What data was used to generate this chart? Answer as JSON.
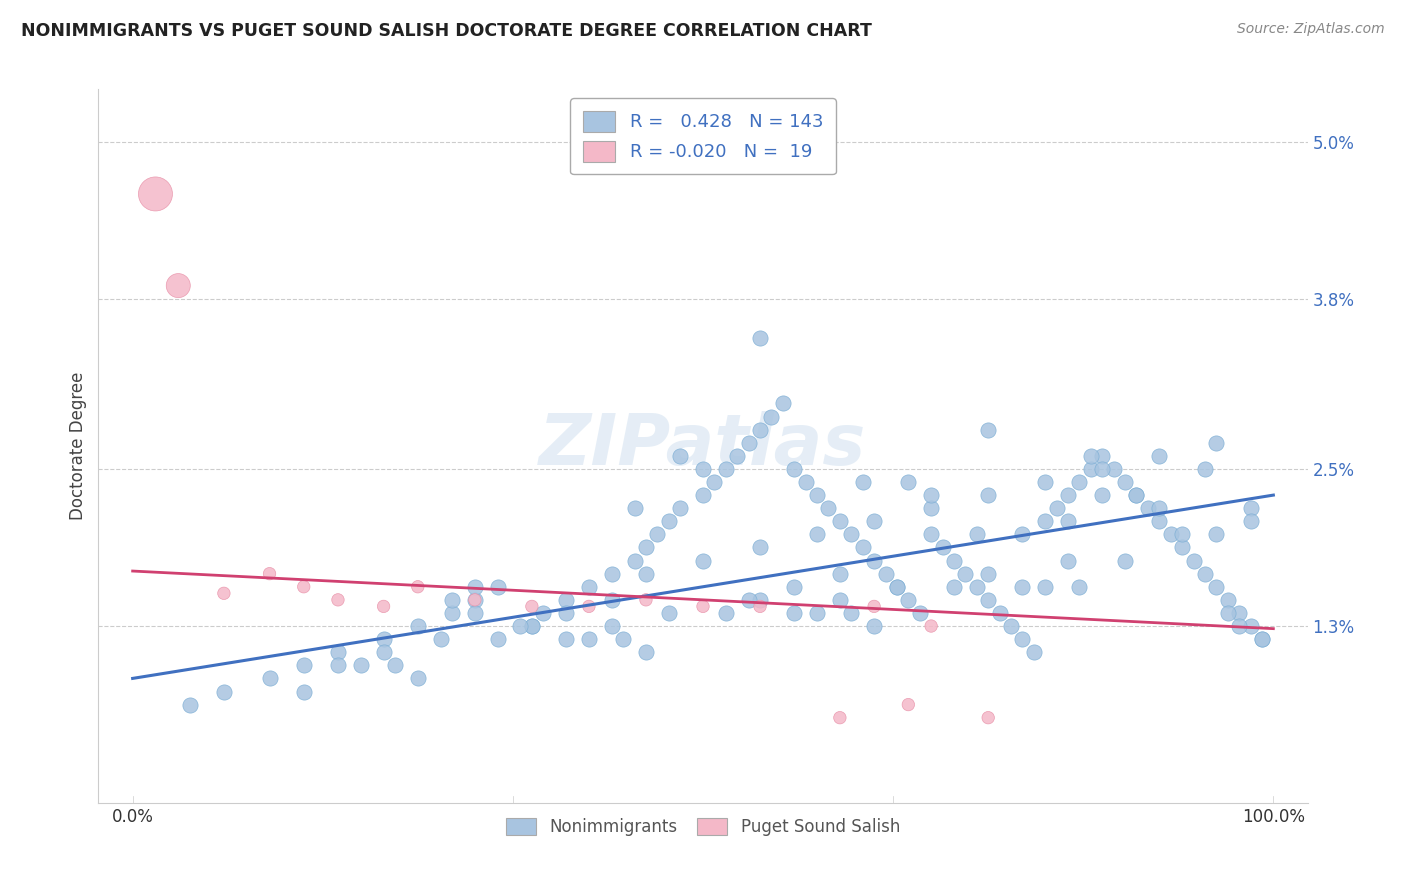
{
  "title": "NONIMMIGRANTS VS PUGET SOUND SALISH DOCTORATE DEGREE CORRELATION CHART",
  "source": "Source: ZipAtlas.com",
  "ylabel": "Doctorate Degree",
  "ytick_vals": [
    1.3,
    2.5,
    3.8,
    5.0
  ],
  "ytick_labels": [
    "1.3%",
    "2.5%",
    "3.8%",
    "5.0%"
  ],
  "xtick_vals": [
    0,
    100
  ],
  "xtick_labels": [
    "0.0%",
    "100.0%"
  ],
  "xlim": [
    -3,
    103
  ],
  "ylim": [
    -0.05,
    5.4
  ],
  "blue_line": [
    0,
    100,
    0.9,
    2.3
  ],
  "pink_line": [
    0,
    100,
    1.72,
    1.28
  ],
  "blue_color": "#a8c4e0",
  "blue_edge_color": "#7aadd4",
  "pink_color": "#f4b8c8",
  "pink_edge_color": "#e890a8",
  "blue_line_color": "#4070c0",
  "pink_line_color": "#d04070",
  "background_color": "#ffffff",
  "grid_color": "#cccccc",
  "blue_R": 0.428,
  "blue_N": 143,
  "pink_R": -0.02,
  "pink_N": 19,
  "legend_labels": [
    "Nonimmigrants",
    "Puget Sound Salish"
  ],
  "watermark": "ZIPatlas",
  "title_color": "#222222",
  "source_color": "#888888",
  "tick_color": "#4070c0",
  "ylabel_color": "#444444",
  "blue_x": [
    5,
    8,
    12,
    15,
    18,
    22,
    25,
    28,
    30,
    32,
    35,
    36,
    38,
    40,
    42,
    44,
    45,
    46,
    47,
    48,
    50,
    51,
    52,
    53,
    54,
    55,
    56,
    57,
    58,
    59,
    60,
    61,
    62,
    63,
    64,
    65,
    66,
    67,
    68,
    69,
    70,
    71,
    72,
    73,
    74,
    75,
    76,
    77,
    78,
    79,
    80,
    81,
    82,
    83,
    84,
    85,
    86,
    87,
    88,
    89,
    90,
    91,
    92,
    93,
    94,
    95,
    96,
    97,
    98,
    99,
    28,
    30,
    45,
    50,
    55,
    60,
    65,
    70,
    75,
    80,
    85,
    90,
    95,
    20,
    40,
    60,
    80,
    35,
    55,
    75,
    95,
    25,
    45,
    65,
    85,
    38,
    58,
    78,
    98,
    42,
    62,
    82,
    15,
    48,
    68,
    88,
    32,
    52,
    72,
    92,
    18,
    38,
    58,
    78,
    98,
    22,
    42,
    62,
    82,
    30,
    50,
    70,
    90,
    27,
    47,
    67,
    87,
    34,
    54,
    74,
    94,
    23,
    43,
    63,
    83,
    55,
    75,
    44,
    64,
    84,
    99,
    97,
    96
  ],
  "blue_y": [
    0.7,
    0.8,
    0.9,
    1.0,
    1.1,
    1.2,
    1.3,
    1.4,
    1.5,
    1.6,
    1.3,
    1.4,
    1.5,
    1.6,
    1.7,
    1.8,
    1.9,
    2.0,
    2.1,
    2.2,
    2.3,
    2.4,
    2.5,
    2.6,
    2.7,
    2.8,
    2.9,
    3.0,
    2.5,
    2.4,
    2.3,
    2.2,
    2.1,
    2.0,
    1.9,
    1.8,
    1.7,
    1.6,
    1.5,
    1.4,
    2.0,
    1.9,
    1.8,
    1.7,
    1.6,
    1.5,
    1.4,
    1.3,
    1.2,
    1.1,
    2.1,
    2.2,
    2.3,
    2.4,
    2.5,
    2.6,
    2.5,
    2.4,
    2.3,
    2.2,
    2.1,
    2.0,
    1.9,
    1.8,
    1.7,
    1.6,
    1.5,
    1.4,
    1.3,
    1.2,
    1.5,
    1.6,
    1.7,
    1.8,
    1.9,
    2.0,
    2.1,
    2.2,
    2.3,
    2.4,
    2.5,
    2.6,
    2.7,
    1.0,
    1.2,
    1.4,
    1.6,
    1.3,
    1.5,
    1.7,
    2.0,
    0.9,
    1.1,
    1.3,
    2.3,
    1.4,
    1.6,
    2.0,
    2.2,
    1.5,
    1.7,
    2.1,
    0.8,
    2.6,
    2.4,
    2.3,
    1.2,
    1.4,
    1.6,
    2.0,
    1.0,
    1.2,
    1.4,
    1.6,
    2.1,
    1.1,
    1.3,
    1.5,
    1.8,
    1.4,
    2.5,
    2.3,
    2.2,
    1.2,
    1.4,
    1.6,
    1.8,
    1.3,
    1.5,
    2.0,
    2.5,
    1.0,
    1.2,
    1.4,
    1.6,
    3.5,
    2.8,
    2.2,
    2.4,
    2.6,
    1.2,
    1.3,
    1.4
  ],
  "pink_x": [
    2,
    4,
    8,
    12,
    15,
    18,
    22,
    25,
    30,
    35,
    40,
    45,
    50,
    55,
    62,
    65,
    68,
    70,
    75
  ],
  "pink_y": [
    4.6,
    3.9,
    1.55,
    1.7,
    1.6,
    1.5,
    1.45,
    1.6,
    1.5,
    1.45,
    1.45,
    1.5,
    1.45,
    1.45,
    0.6,
    1.45,
    0.7,
    1.3,
    0.6
  ],
  "pink_sizes": [
    600,
    300,
    80,
    80,
    80,
    80,
    80,
    80,
    80,
    80,
    80,
    80,
    80,
    80,
    80,
    80,
    80,
    80,
    80
  ]
}
